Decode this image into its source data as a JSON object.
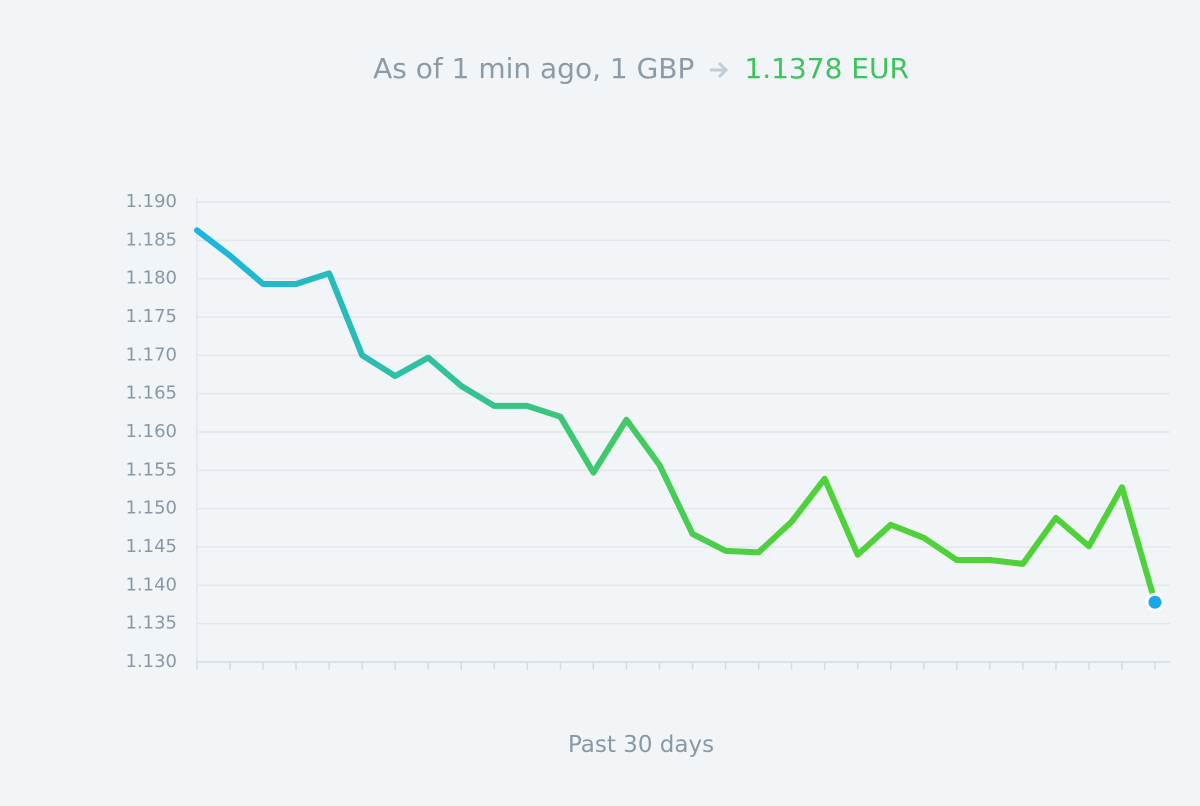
{
  "header": {
    "prefix": "As of 1 min ago, 1 GBP",
    "rate": "1.1378 EUR"
  },
  "chart_data": {
    "type": "line",
    "xlabel": "Past 30 days",
    "categories": [
      null,
      null,
      null,
      null,
      null,
      null,
      null,
      null,
      null,
      null,
      null,
      null,
      null,
      null,
      null,
      null,
      null,
      null,
      null,
      null,
      null,
      null,
      null,
      null,
      null,
      null,
      null,
      null,
      null,
      null
    ],
    "values": [
      1.1863,
      1.183,
      1.1793,
      1.1793,
      1.1807,
      1.17,
      1.1673,
      1.1697,
      1.166,
      1.1634,
      1.1634,
      1.162,
      1.1547,
      1.1616,
      1.1557,
      1.1467,
      1.1445,
      1.1443,
      1.1483,
      1.1539,
      1.144,
      1.1479,
      1.1462,
      1.1433,
      1.1433,
      1.1428,
      1.1488,
      1.1451,
      1.1528,
      1.1378
    ],
    "color_start": "#1bb5e3",
    "color_end": "#4fd13a",
    "marker_color": "#1aa7e8",
    "ylim": [
      1.13,
      1.19
    ],
    "yticks": [
      {
        "value": 1.13,
        "label": "1.130"
      },
      1.135,
      {
        "value": 1.14,
        "label": "1.140"
      },
      1.145,
      {
        "value": 1.15,
        "label": "1.150"
      },
      1.155,
      {
        "value": 1.16,
        "label": "1.160"
      },
      1.165,
      {
        "value": 1.17,
        "label": "1.170"
      },
      1.175,
      {
        "value": 1.18,
        "label": "1.180"
      },
      1.185,
      {
        "value": 1.19,
        "label": "1.190"
      }
    ],
    "grid": true
  }
}
